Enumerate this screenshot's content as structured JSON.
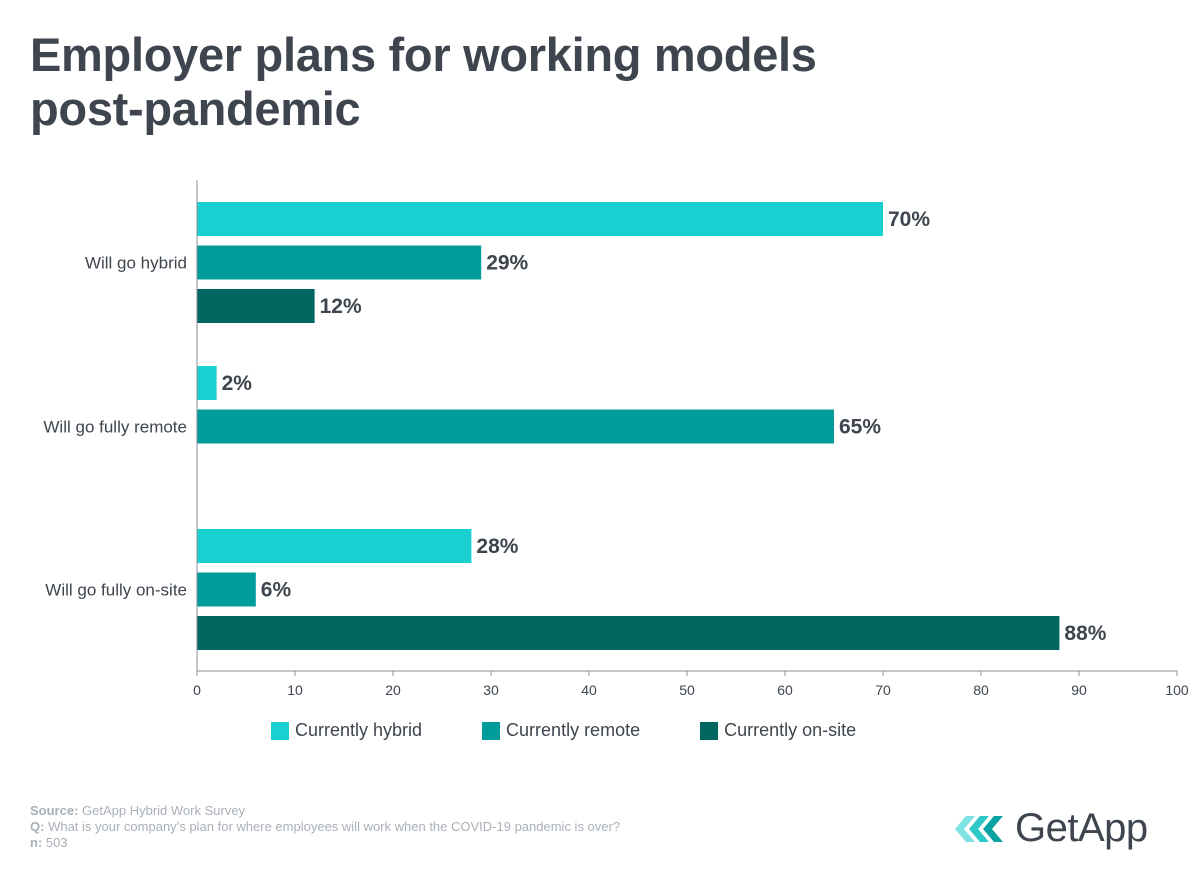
{
  "title": "Employer plans for working models post-pandemic",
  "colors": {
    "hybrid": "#19d0d0",
    "remote": "#009c9c",
    "onsite": "#006660",
    "text": "#3e454e",
    "footer": "#a9b0b7"
  },
  "chart_data": {
    "type": "bar",
    "orientation": "horizontal",
    "categories": [
      "Will go hybrid",
      "Will go fully remote",
      "Will go fully on-site"
    ],
    "series": [
      {
        "name": "Currently hybrid",
        "values": [
          70,
          2,
          28
        ],
        "labels": [
          "70%",
          "2%",
          "28%"
        ],
        "color": "#19d0d0"
      },
      {
        "name": "Currently remote",
        "values": [
          29,
          65,
          6
        ],
        "labels": [
          "29%",
          "65%",
          "6%"
        ],
        "color": "#009c9c"
      },
      {
        "name": "Currently on-site",
        "values": [
          12,
          null,
          88
        ],
        "labels": [
          "12%",
          "",
          "88%"
        ],
        "color": "#006660"
      }
    ],
    "xlim": [
      0,
      100
    ],
    "xticks": [
      0,
      10,
      20,
      30,
      40,
      50,
      60,
      70,
      80,
      90,
      100
    ],
    "legend_position": "bottom",
    "grid": false
  },
  "legend": {
    "hybrid": "Currently hybrid",
    "remote": "Currently remote",
    "onsite": "Currently on-site"
  },
  "footer": {
    "source_label": "Source:",
    "source_text": " GetApp Hybrid Work Survey",
    "q_label": "Q:",
    "q_text": " What is your company’s plan for where employees will work when the COVID-19 pandemic is over?",
    "n_label": "n:",
    "n_text": " 503"
  },
  "logo": {
    "text": "GetApp",
    "icon": "getapp-chevrons-icon"
  }
}
